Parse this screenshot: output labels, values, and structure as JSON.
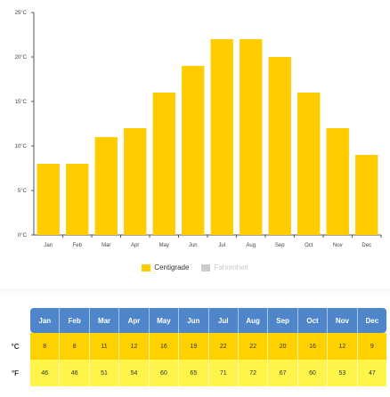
{
  "chart_data": {
    "type": "bar",
    "categories": [
      "Jan",
      "Feb",
      "Mar",
      "Apr",
      "May",
      "Jun",
      "Jul",
      "Aug",
      "Sep",
      "Oct",
      "Nov",
      "Dec"
    ],
    "series": [
      {
        "name": "Centigrade",
        "values": [
          8,
          8,
          11,
          12,
          16,
          19,
          22,
          22,
          20,
          16,
          12,
          9
        ],
        "color": "#ffcc00"
      }
    ],
    "y_ticks": [
      "0°C",
      "5°C",
      "10°C",
      "15°C",
      "20°C",
      "25°C"
    ],
    "ylim": [
      0,
      25
    ],
    "grid": false,
    "legend_position": "bottom-center"
  },
  "legend": {
    "items": [
      {
        "label": "Centigrade",
        "color": "#ffcc00",
        "active": true
      },
      {
        "label": "Fahrenheit",
        "color": "#cccccc",
        "active": false
      }
    ]
  },
  "table": {
    "months": [
      "Jan",
      "Feb",
      "Mar",
      "Apr",
      "May",
      "Jun",
      "Jul",
      "Aug",
      "Sep",
      "Oct",
      "Nov",
      "Dec"
    ],
    "celsius_label": "°C",
    "celsius": [
      "8",
      "8",
      "11",
      "12",
      "16",
      "19",
      "22",
      "22",
      "20",
      "16",
      "12",
      "9"
    ],
    "fahrenheit_label": "°F",
    "fahrenheit": [
      "46",
      "46",
      "51",
      "54",
      "60",
      "65",
      "71",
      "72",
      "67",
      "60",
      "53",
      "47"
    ]
  },
  "colors": {
    "bar": "#ffcc00",
    "header_bg": "#4f86c9",
    "celsius_row": "#ffd100",
    "fahrenheit_row": "#fff54a"
  }
}
